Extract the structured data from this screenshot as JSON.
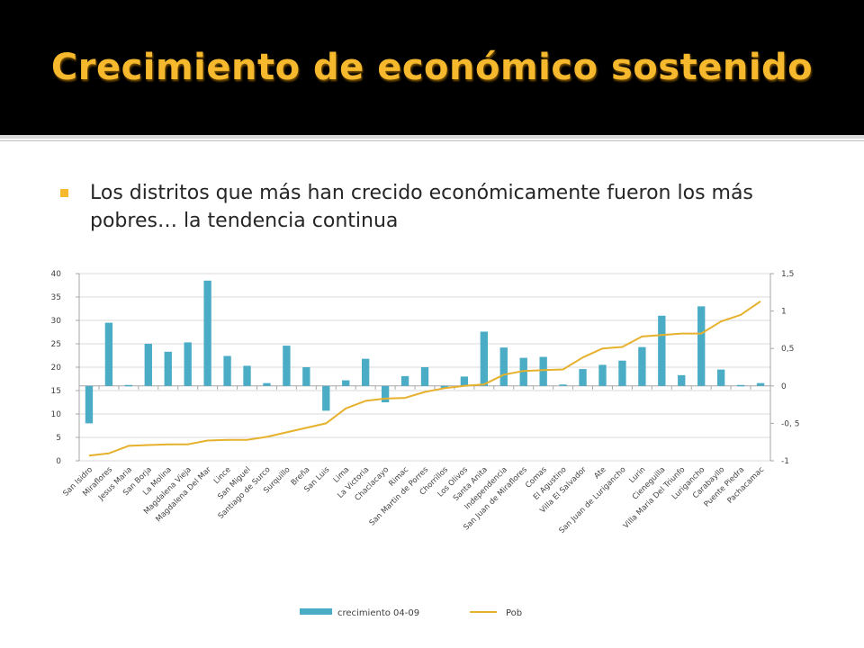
{
  "slide": {
    "title": "Crecimiento de económico sostenido",
    "bullet": "Los distritos que más han crecido económicamente fueron los más pobres… la tendencia continua"
  },
  "colors": {
    "bar": "#4bacc6",
    "line": "#e6b12c",
    "title": "#f6b82c",
    "grid": "#d9d9d9"
  },
  "chart_data": {
    "type": "bar",
    "categories": [
      "San Isidro",
      "Miraflores",
      "Jesus Maria",
      "San Borja",
      "La Molina",
      "Magdalena Vieja",
      "Magdalena Del Mar",
      "Lince",
      "San Miguel",
      "Santiago de Surco",
      "Surquillo",
      "Breña",
      "San Luis",
      "Lima",
      "La Victoria",
      "Chaclacayo",
      "Rimac",
      "San Martin de Porres",
      "Chorrillos",
      "Los Olivos",
      "Santa Anita",
      "Independencia",
      "San Juan de Miraflores",
      "Comas",
      "El Agustino",
      "Villa El Salvador",
      "Ate",
      "San Juan de Lurigancho",
      "Lurin",
      "Cieneguilla",
      "Villa Maria Del Triunfo",
      "Lurigancho",
      "Carabayllo",
      "Puente Piedra",
      "Pachacamac"
    ],
    "series": [
      {
        "name": "crecimiento 04-09",
        "axis": "left",
        "kind": "bar",
        "values": [
          8,
          29.5,
          16.2,
          25,
          23.3,
          25.3,
          38.5,
          22.4,
          20.3,
          16.6,
          24.6,
          20,
          10.7,
          17.2,
          21.8,
          12.5,
          18.1,
          20,
          15.5,
          18,
          27.6,
          24.2,
          22,
          22.2,
          16.3,
          19.6,
          20.5,
          21.4,
          24.3,
          31,
          18.3,
          33,
          19.5,
          16.2,
          16.6
        ]
      },
      {
        "name": "Pob",
        "axis": "right",
        "kind": "line",
        "values": [
          -0.93,
          -0.9,
          -0.8,
          -0.79,
          -0.78,
          -0.78,
          -0.73,
          -0.72,
          -0.72,
          -0.68,
          -0.62,
          -0.56,
          -0.5,
          -0.3,
          -0.2,
          -0.17,
          -0.16,
          -0.08,
          -0.03,
          0,
          0.02,
          0.15,
          0.2,
          0.21,
          0.22,
          0.38,
          0.5,
          0.52,
          0.66,
          0.68,
          0.7,
          0.7,
          0.86,
          0.95,
          1.13
        ]
      }
    ],
    "ylim": [
      0,
      40
    ],
    "y2lim": [
      -1,
      1.5
    ],
    "yticks": [
      "40",
      "35",
      "30",
      "25",
      "20",
      "15",
      "10",
      "5",
      "0"
    ],
    "y2ticks": [
      "1,5",
      "1",
      "0,5",
      "0",
      "-0, 5",
      "-1"
    ],
    "legend_position": "bottom"
  }
}
